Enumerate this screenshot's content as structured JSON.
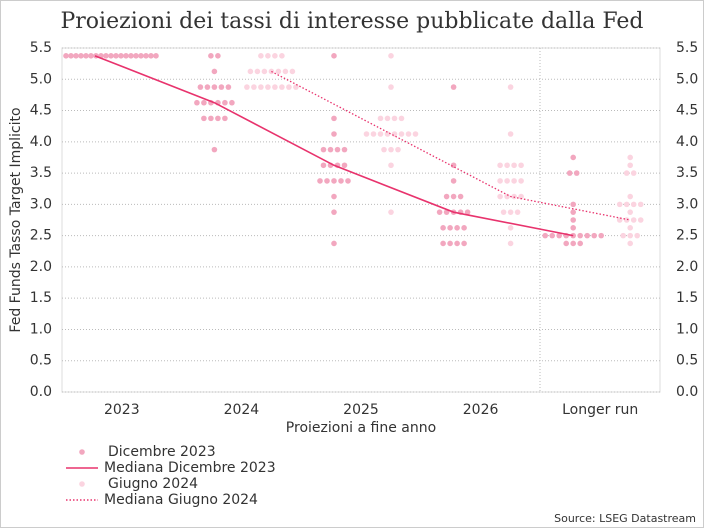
{
  "chart_data": {
    "type": "dot",
    "title": "Proiezioni dei tassi di interesse pubblicate dalla Fed",
    "x_label": "Proiezioni a fine anno",
    "y_label": "Fed Funds Tasso Target Implicito",
    "source": "Source: LSEG Datastream",
    "categories": [
      "2023",
      "2024",
      "2025",
      "2026",
      "Longer run"
    ],
    "ylim": [
      0,
      5.5
    ],
    "yticks": [
      {
        "value": 0,
        "label": "0.0"
      },
      {
        "value": 0.5,
        "label": "0.5"
      },
      {
        "value": 1,
        "label": "1.0"
      },
      {
        "value": 1.5,
        "label": "1.5"
      },
      {
        "value": 2,
        "label": "2.0"
      },
      {
        "value": 2.5,
        "label": "2.5"
      },
      {
        "value": 3,
        "label": "3.0"
      },
      {
        "value": 3.5,
        "label": "3.5"
      },
      {
        "value": 4,
        "label": "4.0"
      },
      {
        "value": 4.5,
        "label": "4.5"
      },
      {
        "value": 5,
        "label": "5.0"
      },
      {
        "value": 5.5,
        "label": "5.5"
      }
    ],
    "grid": true,
    "series": [
      {
        "name": "Dicembre 2023",
        "kind": "dots",
        "color": "#f2a7bf",
        "dots": [
          [
            5.375,
            5.375,
            5.375,
            5.375,
            5.375,
            5.375,
            5.375,
            5.375,
            5.375,
            5.375,
            5.375,
            5.375,
            5.375,
            5.375,
            5.375,
            5.375,
            5.375,
            5.375,
            5.375
          ],
          [
            5.375,
            5.375,
            5.125,
            4.875,
            4.875,
            4.875,
            4.875,
            4.875,
            4.625,
            4.625,
            4.625,
            4.625,
            4.625,
            4.625,
            4.375,
            4.375,
            4.375,
            4.375,
            3.875
          ],
          [
            5.375,
            4.375,
            4.125,
            3.875,
            3.875,
            3.875,
            3.875,
            3.625,
            3.625,
            3.625,
            3.625,
            3.375,
            3.375,
            3.375,
            3.375,
            3.375,
            3.125,
            2.875,
            2.375
          ],
          [
            4.875,
            3.625,
            3.375,
            3.125,
            3.125,
            3.125,
            2.875,
            2.875,
            2.875,
            2.875,
            2.875,
            2.625,
            2.625,
            2.625,
            2.625,
            2.375,
            2.375,
            2.375,
            2.375
          ],
          [
            3.75,
            3.5,
            3.5,
            3.0,
            2.875,
            2.75,
            2.625,
            2.5,
            2.5,
            2.5,
            2.5,
            2.5,
            2.5,
            2.5,
            2.5,
            2.5,
            2.375,
            2.375,
            2.375
          ]
        ]
      },
      {
        "name": "Mediana Dicembre 2023",
        "kind": "line",
        "color": "#e8336d",
        "values": [
          5.375,
          4.625,
          3.625,
          2.875,
          2.5
        ]
      },
      {
        "name": "Giugno 2024",
        "kind": "dots",
        "color": "#fbd4e0",
        "dots": [
          [],
          [
            5.375,
            5.375,
            5.375,
            5.375,
            5.125,
            5.125,
            5.125,
            5.125,
            5.125,
            5.125,
            5.125,
            4.875,
            4.875,
            4.875,
            4.875,
            4.875,
            4.875,
            4.875,
            4.875
          ],
          [
            5.375,
            4.875,
            4.375,
            4.375,
            4.375,
            4.375,
            4.125,
            4.125,
            4.125,
            4.125,
            4.125,
            4.125,
            4.125,
            4.125,
            3.875,
            3.875,
            3.875,
            3.625,
            2.875
          ],
          [
            4.875,
            4.125,
            3.625,
            3.625,
            3.625,
            3.625,
            3.375,
            3.375,
            3.375,
            3.375,
            3.125,
            3.125,
            3.125,
            3.125,
            2.875,
            2.875,
            2.875,
            2.625,
            2.375
          ],
          [
            3.75,
            3.625,
            3.5,
            3.5,
            3.125,
            3.0,
            3.0,
            3.0,
            3.0,
            2.875,
            2.75,
            2.75,
            2.75,
            2.75,
            2.625,
            2.5,
            2.5,
            2.5,
            2.375
          ]
        ]
      },
      {
        "name": "Mediana Giugno 2024",
        "kind": "line",
        "color": "#e8336d",
        "dash": "dotted",
        "values": [
          null,
          5.125,
          4.125,
          3.125,
          2.75
        ]
      }
    ]
  }
}
